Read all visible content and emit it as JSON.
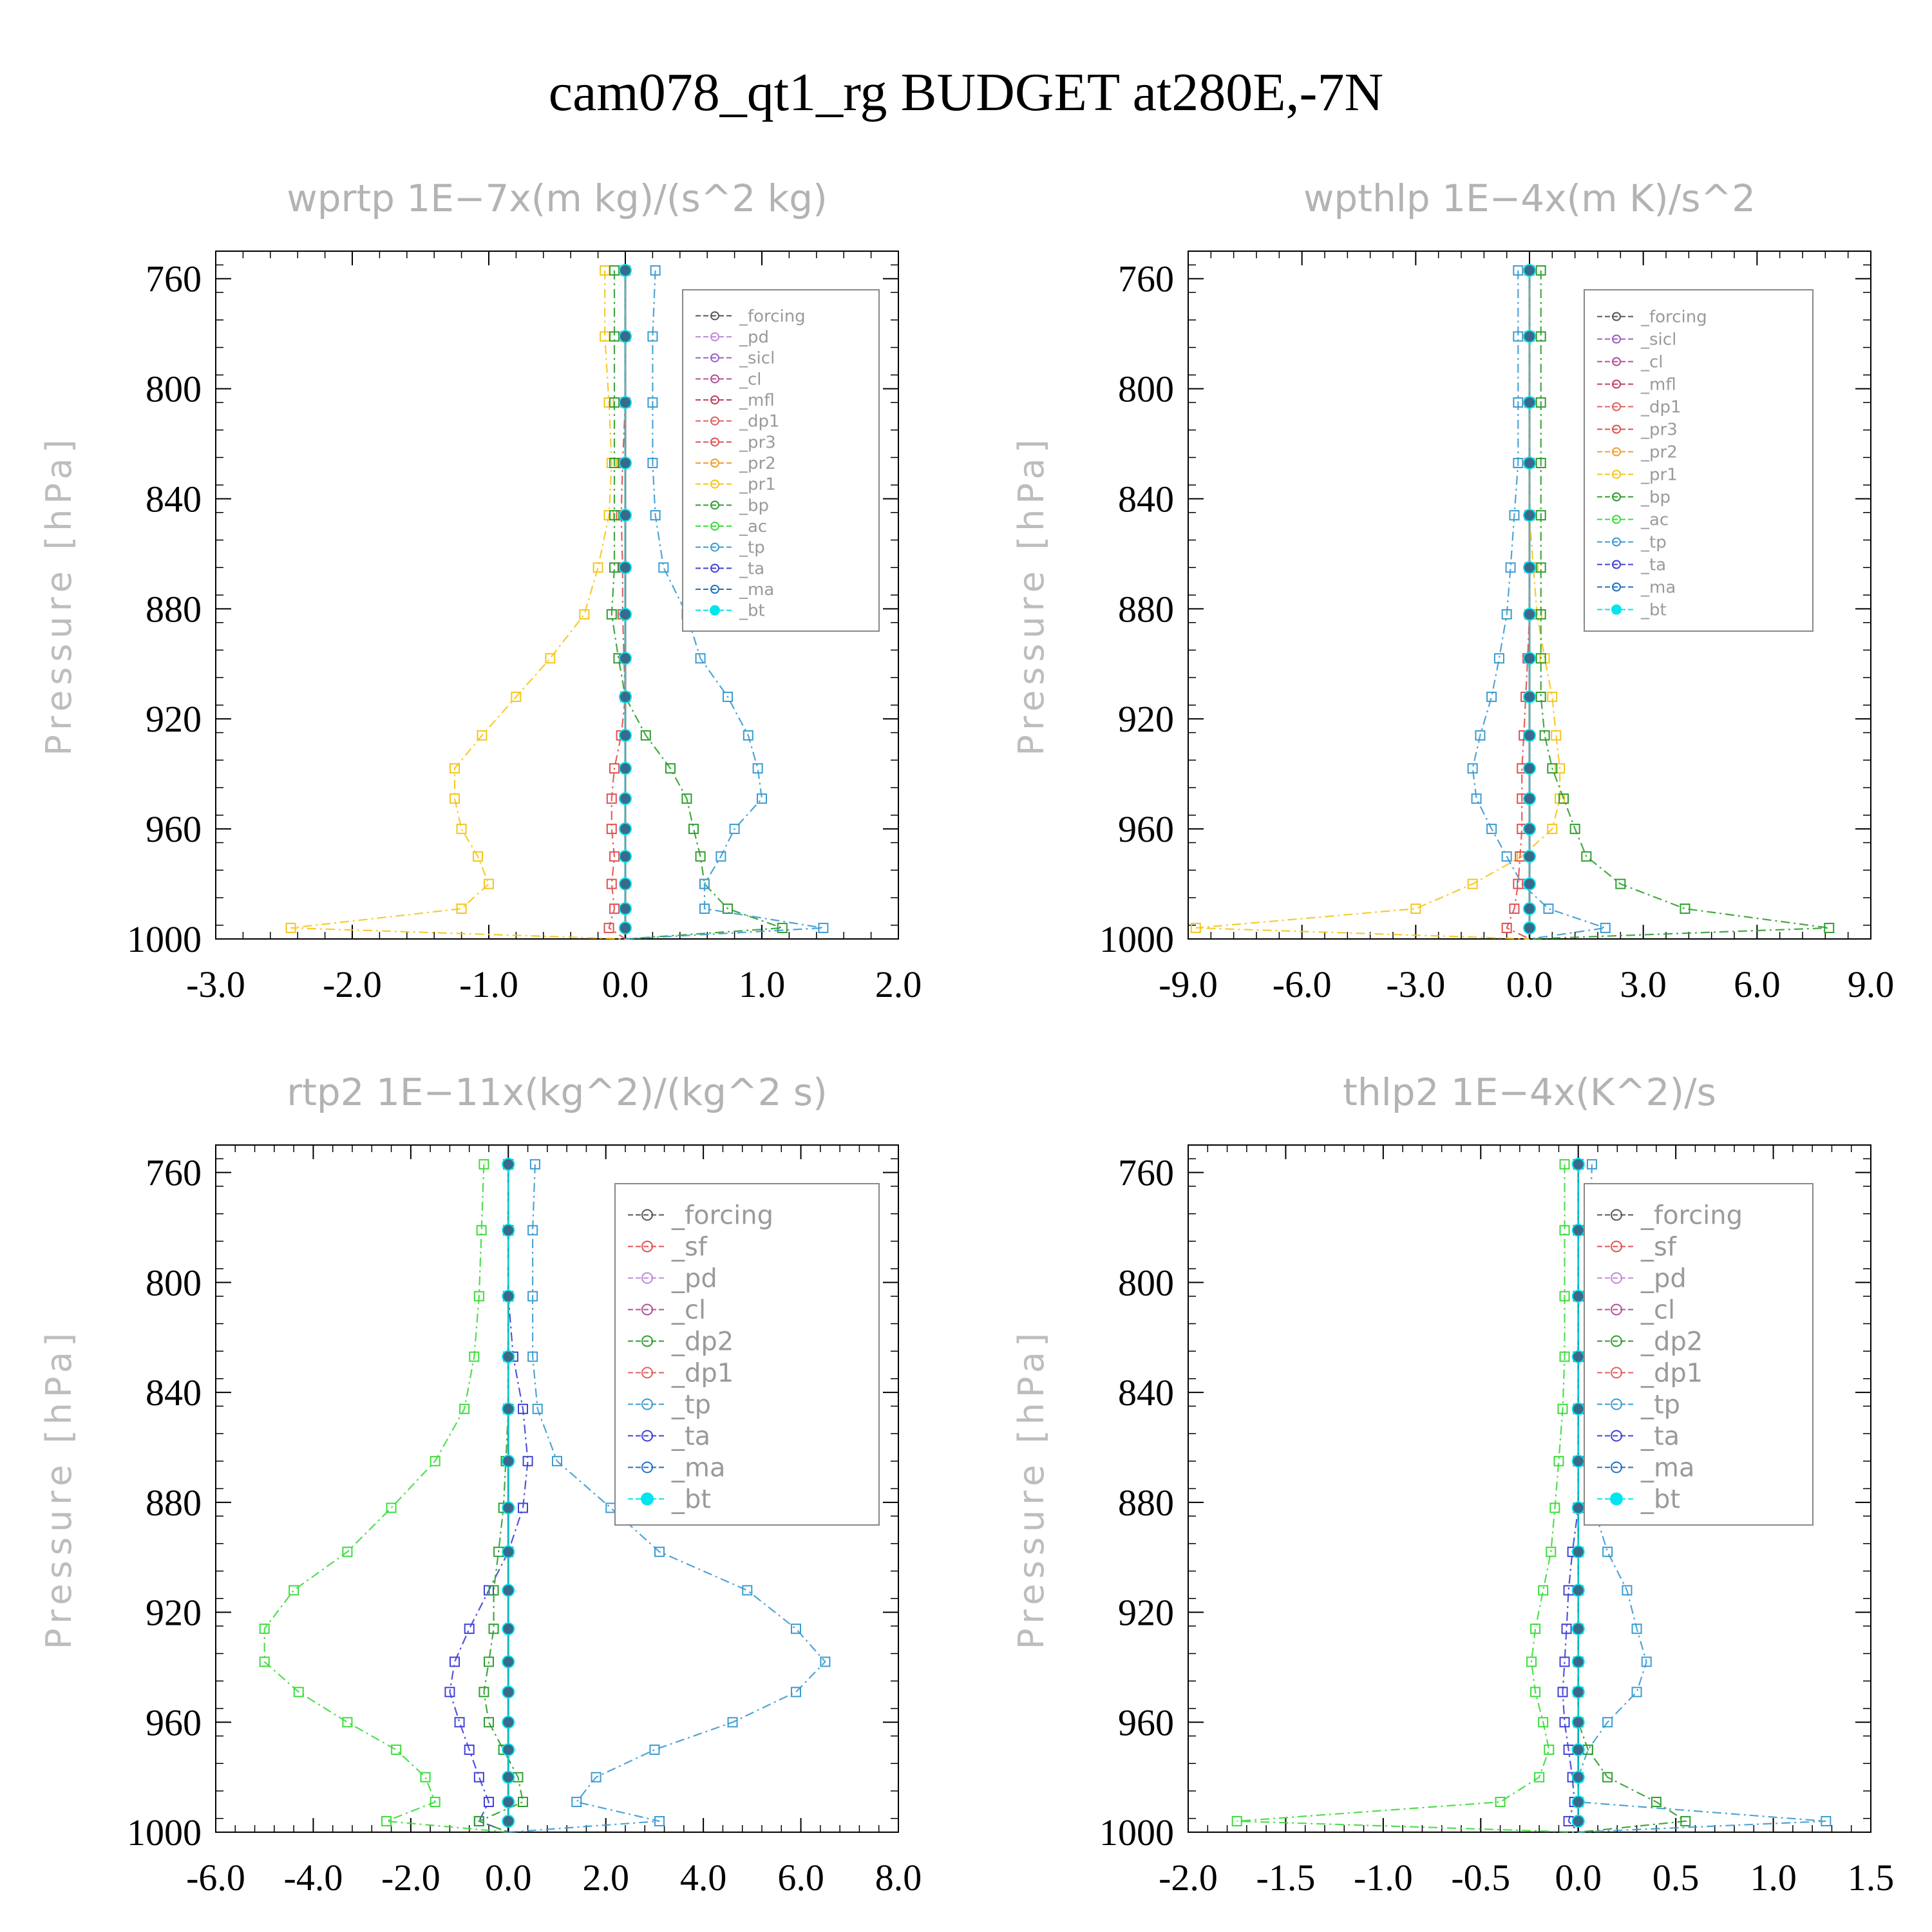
{
  "page": {
    "title": "cam078_qt1_rg  BUDGET at280E,-7N"
  },
  "chart_data": [
    {
      "type": "line",
      "title": "wprtp   1E−7x(m kg)/(s^2 kg)",
      "ylabel": "Pressure [hPa]",
      "xlim": [
        -3.0,
        2.0
      ],
      "xticks": [
        "-3.0",
        "-2.0",
        "-1.0",
        "0.0",
        "1.0",
        "2.0"
      ],
      "ylim": [
        1000,
        750
      ],
      "yticks": [
        "760",
        "800",
        "840",
        "880",
        "920",
        "960",
        "1000"
      ],
      "pressure": [
        757,
        781,
        805,
        827,
        846,
        865,
        882,
        898,
        912,
        926,
        938,
        949,
        960,
        970,
        980,
        989,
        996
      ],
      "legend": [
        "_forcing",
        "_pd",
        "_sicl",
        "_cl",
        "_mfl",
        "_dp1",
        "_pr3",
        "_pr2",
        "_pr1",
        "_bp",
        "_ac",
        "_tp",
        "_ta",
        "_ma",
        "_bt"
      ],
      "series": [
        {
          "name": "_pr1",
          "color": "#f5c518",
          "values": [
            -0.15,
            -0.15,
            -0.12,
            -0.1,
            -0.12,
            -0.2,
            -0.3,
            -0.55,
            -0.8,
            -1.05,
            -1.25,
            -1.25,
            -1.2,
            -1.08,
            -1.0,
            -1.2,
            -2.45
          ]
        },
        {
          "name": "_pr3",
          "color": "#e05050",
          "values": [
            0.0,
            0.0,
            0.0,
            -0.02,
            -0.03,
            -0.02,
            -0.02,
            -0.01,
            0.0,
            -0.03,
            -0.08,
            -0.1,
            -0.1,
            -0.08,
            -0.1,
            -0.08,
            -0.12
          ]
        },
        {
          "name": "_bp",
          "color": "#2e9e2e",
          "values": [
            -0.08,
            -0.08,
            -0.08,
            -0.08,
            -0.08,
            -0.08,
            -0.1,
            -0.05,
            0.0,
            0.15,
            0.33,
            0.45,
            0.5,
            0.55,
            0.58,
            0.75,
            1.15
          ]
        },
        {
          "name": "_tp",
          "color": "#3b9bd1",
          "values": [
            0.22,
            0.2,
            0.2,
            0.2,
            0.22,
            0.28,
            0.45,
            0.55,
            0.75,
            0.9,
            0.97,
            1.0,
            0.8,
            0.7,
            0.58,
            0.58,
            1.45
          ]
        },
        {
          "name": "_bt",
          "color": "#00e5ee",
          "values": [
            0.0,
            0.0,
            0.0,
            0.0,
            0.0,
            0.0,
            0.0,
            0.0,
            0.0,
            0.0,
            0.0,
            0.0,
            0.0,
            0.0,
            0.0,
            0.0,
            0.0
          ]
        }
      ]
    },
    {
      "type": "line",
      "title": "wpthlp   1E−4x(m K)/s^2",
      "ylabel": "Pressure [hPa]",
      "xlim": [
        -9.0,
        9.0
      ],
      "xticks": [
        "-9.0",
        "-6.0",
        "-3.0",
        "0.0",
        "3.0",
        "6.0",
        "9.0"
      ],
      "ylim": [
        1000,
        750
      ],
      "yticks": [
        "760",
        "800",
        "840",
        "880",
        "920",
        "960",
        "1000"
      ],
      "pressure": [
        757,
        781,
        805,
        827,
        846,
        865,
        882,
        898,
        912,
        926,
        938,
        949,
        960,
        970,
        980,
        989,
        996
      ],
      "legend": [
        "_forcing",
        "_sicl",
        "_cl",
        "_mfl",
        "_dp1",
        "_pr3",
        "_pr2",
        "_pr1",
        "_bp",
        "_ac",
        "_tp",
        "_ta",
        "_ma",
        "_bt"
      ],
      "series": [
        {
          "name": "_pr1",
          "color": "#f5c518",
          "values": [
            0.0,
            0.0,
            0.0,
            0.0,
            0.0,
            0.1,
            0.2,
            0.4,
            0.6,
            0.7,
            0.8,
            0.8,
            0.6,
            -0.2,
            -1.5,
            -3.0,
            -8.8
          ]
        },
        {
          "name": "_bp",
          "color": "#2e9e2e",
          "values": [
            0.3,
            0.3,
            0.3,
            0.3,
            0.3,
            0.3,
            0.3,
            0.3,
            0.3,
            0.4,
            0.6,
            0.9,
            1.2,
            1.5,
            2.4,
            4.1,
            7.9
          ]
        },
        {
          "name": "_tp",
          "color": "#3b9bd1",
          "values": [
            -0.3,
            -0.3,
            -0.3,
            -0.3,
            -0.4,
            -0.5,
            -0.6,
            -0.8,
            -1.0,
            -1.3,
            -1.5,
            -1.4,
            -1.0,
            -0.6,
            -0.2,
            0.5,
            2.0
          ]
        },
        {
          "name": "_pr3",
          "color": "#e05050",
          "values": [
            0.0,
            0.0,
            0.0,
            0.0,
            0.0,
            0.0,
            0.0,
            -0.05,
            -0.1,
            -0.15,
            -0.2,
            -0.2,
            -0.2,
            -0.25,
            -0.3,
            -0.4,
            -0.6
          ]
        },
        {
          "name": "_bt",
          "color": "#00e5ee",
          "values": [
            0.0,
            0.0,
            0.0,
            0.0,
            0.0,
            0.0,
            0.0,
            0.0,
            0.0,
            0.0,
            0.0,
            0.0,
            0.0,
            0.0,
            0.0,
            0.0,
            0.0
          ]
        }
      ]
    },
    {
      "type": "line",
      "title": "rtp2   1E−11x(kg^2)/(kg^2 s)",
      "ylabel": "Pressure [hPa]",
      "xlim": [
        -6.0,
        8.0
      ],
      "xticks": [
        "-6.0",
        "-4.0",
        "-2.0",
        "0.0",
        "2.0",
        "4.0",
        "6.0",
        "8.0"
      ],
      "ylim": [
        1000,
        750
      ],
      "yticks": [
        "760",
        "800",
        "840",
        "880",
        "920",
        "960",
        "1000"
      ],
      "pressure": [
        757,
        781,
        805,
        827,
        846,
        865,
        882,
        898,
        912,
        926,
        938,
        949,
        960,
        970,
        980,
        989,
        996
      ],
      "legend": [
        "_forcing",
        "_sf",
        "_pd",
        "_cl",
        "_dp2",
        "_dp1",
        "_tp",
        "_ta",
        "_ma",
        "_bt"
      ],
      "series": [
        {
          "name": "_dp1",
          "color": "#3cdc3c",
          "values": [
            -0.5,
            -0.55,
            -0.6,
            -0.7,
            -0.9,
            -1.5,
            -2.4,
            -3.3,
            -4.4,
            -5.0,
            -5.0,
            -4.3,
            -3.3,
            -2.3,
            -1.7,
            -1.5,
            -2.5
          ]
        },
        {
          "name": "_tp",
          "color": "#3b9bd1",
          "values": [
            0.55,
            0.5,
            0.5,
            0.5,
            0.6,
            1.0,
            2.1,
            3.1,
            4.9,
            5.9,
            6.5,
            5.9,
            4.6,
            3.0,
            1.8,
            1.4,
            3.1
          ]
        },
        {
          "name": "_ta",
          "color": "#4040d8",
          "values": [
            0.0,
            0.0,
            0.0,
            0.1,
            0.3,
            0.4,
            0.3,
            0.0,
            -0.4,
            -0.8,
            -1.1,
            -1.2,
            -1.0,
            -0.8,
            -0.6,
            -0.4,
            -0.6
          ]
        },
        {
          "name": "_dp2",
          "color": "#2e9e2e",
          "values": [
            0.0,
            0.0,
            0.0,
            0.0,
            0.0,
            -0.05,
            -0.1,
            -0.2,
            -0.3,
            -0.3,
            -0.4,
            -0.5,
            -0.4,
            -0.1,
            0.2,
            0.3,
            -0.6
          ]
        },
        {
          "name": "_bt",
          "color": "#00e5ee",
          "values": [
            0.0,
            0.0,
            0.0,
            0.0,
            0.0,
            0.0,
            0.0,
            0.0,
            0.0,
            0.0,
            0.0,
            0.0,
            0.0,
            0.0,
            0.0,
            0.0,
            0.0
          ]
        }
      ]
    },
    {
      "type": "line",
      "title": "thlp2   1E−4x(K^2)/s",
      "ylabel": "Pressure [hPa]",
      "xlim": [
        -2.0,
        1.5
      ],
      "xticks": [
        "-2.0",
        "-1.5",
        "-1.0",
        "-0.5",
        "0.0",
        "0.5",
        "1.0",
        "1.5"
      ],
      "ylim": [
        1000,
        750
      ],
      "yticks": [
        "760",
        "800",
        "840",
        "880",
        "920",
        "960",
        "1000"
      ],
      "pressure": [
        757,
        781,
        805,
        827,
        846,
        865,
        882,
        898,
        912,
        926,
        938,
        949,
        960,
        970,
        980,
        989,
        996
      ],
      "legend": [
        "_forcing",
        "_sf",
        "_pd",
        "_cl",
        "_dp2",
        "_dp1",
        "_tp",
        "_ta",
        "_ma",
        "_bt"
      ],
      "series": [
        {
          "name": "_dp1",
          "color": "#3cdc3c",
          "values": [
            -0.07,
            -0.07,
            -0.07,
            -0.07,
            -0.08,
            -0.1,
            -0.12,
            -0.14,
            -0.18,
            -0.22,
            -0.24,
            -0.22,
            -0.18,
            -0.15,
            -0.2,
            -0.4,
            -1.75
          ]
        },
        {
          "name": "_tp",
          "color": "#3b9bd1",
          "values": [
            0.07,
            0.06,
            0.05,
            0.05,
            0.05,
            0.06,
            0.08,
            0.15,
            0.25,
            0.3,
            0.35,
            0.3,
            0.15,
            0.05,
            0.0,
            0.0,
            1.27
          ]
        },
        {
          "name": "_dp2",
          "color": "#2e9e2e",
          "values": [
            0.0,
            0.0,
            0.0,
            0.0,
            0.0,
            0.0,
            0.0,
            0.0,
            0.0,
            0.0,
            0.0,
            0.0,
            0.0,
            0.05,
            0.15,
            0.4,
            0.55
          ]
        },
        {
          "name": "_ta",
          "color": "#4040d8",
          "values": [
            0.0,
            0.0,
            0.0,
            0.0,
            0.0,
            0.0,
            0.0,
            -0.03,
            -0.05,
            -0.06,
            -0.07,
            -0.08,
            -0.07,
            -0.05,
            -0.03,
            -0.02,
            -0.05
          ]
        },
        {
          "name": "_bt",
          "color": "#00e5ee",
          "values": [
            0.0,
            0.0,
            0.0,
            0.0,
            0.0,
            0.0,
            0.0,
            0.0,
            0.0,
            0.0,
            0.0,
            0.0,
            0.0,
            0.0,
            0.0,
            0.0,
            0.0
          ]
        }
      ]
    }
  ]
}
